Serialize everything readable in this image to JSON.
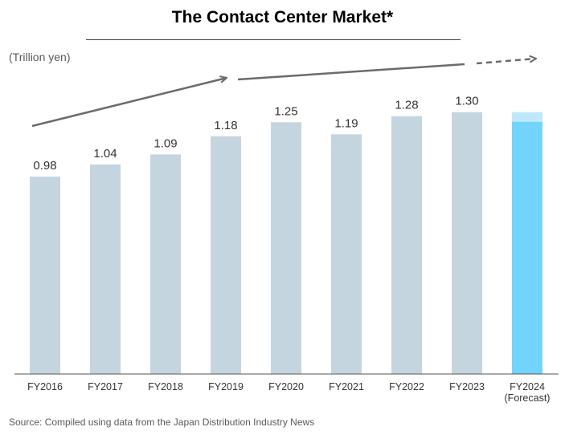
{
  "title": "The Contact Center Market*",
  "unit_label": "(Trillion yen)",
  "source": "Source: Compiled using data from the Japan Distribution Industry News",
  "chart_data": {
    "type": "bar",
    "title": "The Contact Center Market*",
    "ylabel": "(Trillion yen)",
    "categories": [
      "FY2016",
      "FY2017",
      "FY2018",
      "FY2019",
      "FY2020",
      "FY2021",
      "FY2022",
      "FY2023",
      "FY2024"
    ],
    "category_sublabels": [
      "",
      "",
      "",
      "",
      "",
      "",
      "",
      "",
      "(Forecast)"
    ],
    "values": [
      0.98,
      1.04,
      1.09,
      1.18,
      1.25,
      1.19,
      1.28,
      1.3,
      1.3
    ],
    "value_labels": [
      "0.98",
      "1.04",
      "1.09",
      "1.18",
      "1.25",
      "1.19",
      "1.28",
      "1.30",
      ""
    ],
    "forecast_index": 8,
    "colors": {
      "actual": "#c5d5e0",
      "forecast": "#72d4fb",
      "forecast_fade": "#bfe9fb",
      "trend_arrow": "#6b6b6b",
      "axis": "#555555"
    },
    "grid": false,
    "legend": "none"
  }
}
